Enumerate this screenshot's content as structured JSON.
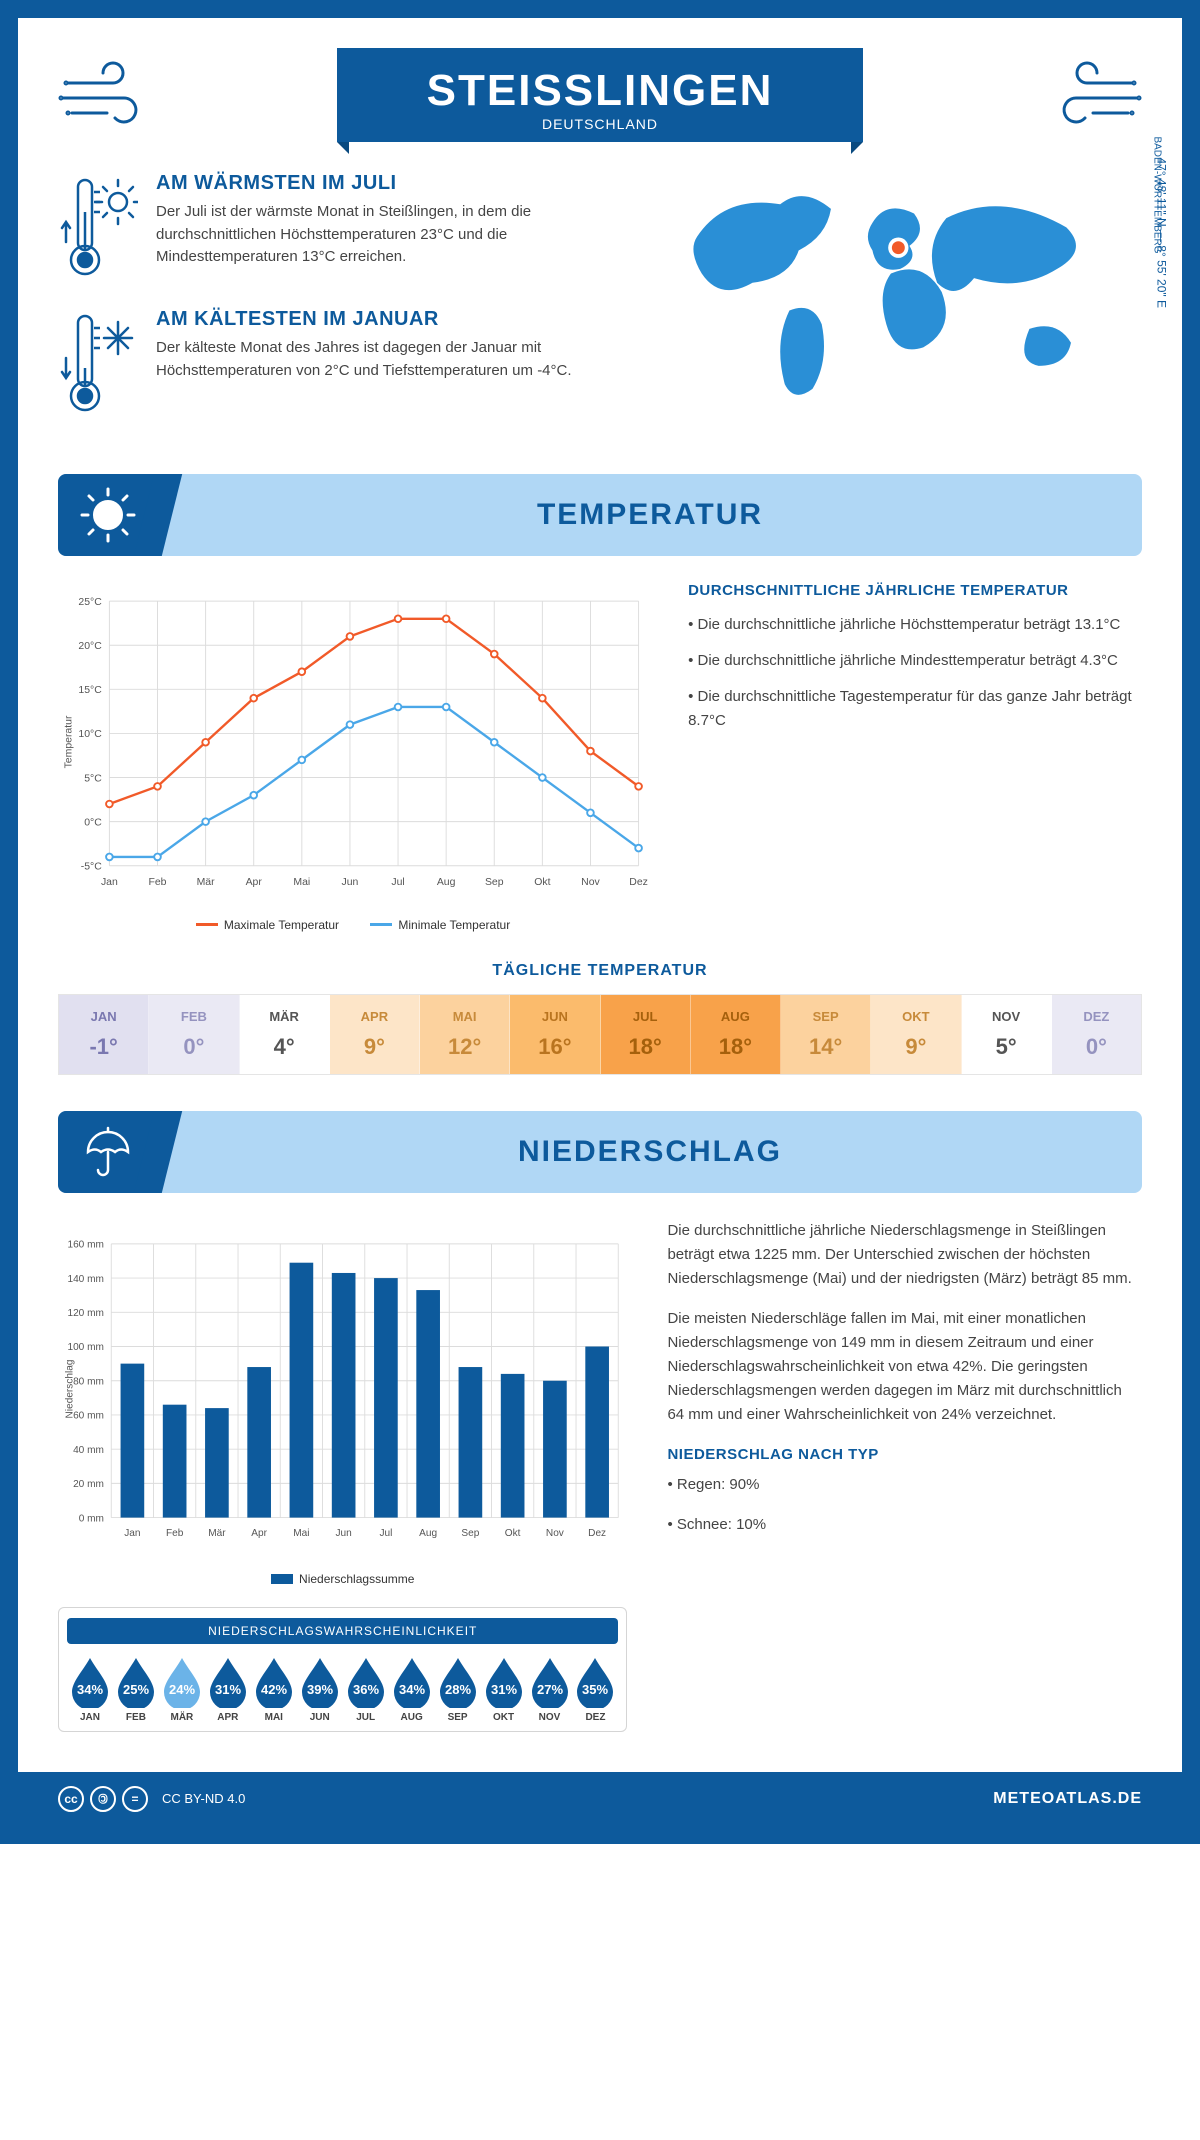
{
  "header": {
    "title": "STEISSLINGEN",
    "subtitle": "DEUTSCHLAND",
    "coords": "47° 48' 11\" N — 8° 55' 20\" E",
    "region": "BADEN-WÜRTTEMBERG"
  },
  "facts": {
    "warm": {
      "title": "AM WÄRMSTEN IM JULI",
      "text": "Der Juli ist der wärmste Monat in Steißlingen, in dem die durchschnittlichen Höchsttemperaturen 23°C und die Mindesttemperaturen 13°C erreichen."
    },
    "cold": {
      "title": "AM KÄLTESTEN IM JANUAR",
      "text": "Der kälteste Monat des Jahres ist dagegen der Januar mit Höchsttemperaturen von 2°C und Tiefsttemperaturen um -4°C."
    }
  },
  "sections": {
    "temp": "TEMPERATUR",
    "precip": "NIEDERSCHLAG"
  },
  "temp_chart": {
    "months": [
      "Jan",
      "Feb",
      "Mär",
      "Apr",
      "Mai",
      "Jun",
      "Jul",
      "Aug",
      "Sep",
      "Okt",
      "Nov",
      "Dez"
    ],
    "max": [
      2,
      4,
      9,
      14,
      17,
      21,
      23,
      23,
      19,
      14,
      8,
      4
    ],
    "min": [
      -4,
      -4,
      0,
      3,
      7,
      11,
      13,
      13,
      9,
      5,
      1,
      -3
    ],
    "max_color": "#f15a29",
    "min_color": "#4aa7e8",
    "grid_color": "#dcdcdc",
    "ylim": [
      -5,
      25
    ],
    "ytick_step": 5,
    "ylabel": "Temperatur",
    "legend_max": "Maximale Temperatur",
    "legend_min": "Minimale Temperatur"
  },
  "temp_text": {
    "heading": "DURCHSCHNITTLICHE JÄHRLICHE TEMPERATUR",
    "p1": "• Die durchschnittliche jährliche Höchsttemperatur beträgt 13.1°C",
    "p2": "• Die durchschnittliche jährliche Mindesttemperatur beträgt 4.3°C",
    "p3": "• Die durchschnittliche Tagestemperatur für das ganze Jahr beträgt 8.7°C"
  },
  "daily": {
    "title": "TÄGLICHE TEMPERATUR",
    "months": [
      "JAN",
      "FEB",
      "MÄR",
      "APR",
      "MAI",
      "JUN",
      "JUL",
      "AUG",
      "SEP",
      "OKT",
      "NOV",
      "DEZ"
    ],
    "values": [
      "-1°",
      "0°",
      "4°",
      "9°",
      "12°",
      "16°",
      "18°",
      "18°",
      "14°",
      "9°",
      "5°",
      "0°"
    ],
    "bg": [
      "#e1e0f0",
      "#eae9f4",
      "#ffffff",
      "#fde5c8",
      "#fcd29e",
      "#fbbb6c",
      "#f8a24a",
      "#f8a24a",
      "#fcd29e",
      "#fde5c8",
      "#ffffff",
      "#eae9f4"
    ],
    "text": [
      "#7a78b0",
      "#9593bf",
      "#555",
      "#c78a3a",
      "#c78a3a",
      "#b9741f",
      "#a5600c",
      "#a5600c",
      "#c78a3a",
      "#c78a3a",
      "#555",
      "#9593bf"
    ]
  },
  "precip_chart": {
    "months": [
      "Jan",
      "Feb",
      "Mär",
      "Apr",
      "Mai",
      "Jun",
      "Jul",
      "Aug",
      "Sep",
      "Okt",
      "Nov",
      "Dez"
    ],
    "values": [
      90,
      66,
      64,
      88,
      149,
      143,
      140,
      133,
      88,
      84,
      80,
      100
    ],
    "bar_color": "#0d5a9c",
    "grid_color": "#dcdcdc",
    "ylim": [
      0,
      160
    ],
    "ytick_step": 20,
    "ylabel": "Niederschlag",
    "legend": "Niederschlagssumme"
  },
  "precip_text": {
    "p1": "Die durchschnittliche jährliche Niederschlagsmenge in Steißlingen beträgt etwa 1225 mm. Der Unterschied zwischen der höchsten Niederschlagsmenge (Mai) und der niedrigsten (März) beträgt 85 mm.",
    "p2": "Die meisten Niederschläge fallen im Mai, mit einer monatlichen Niederschlagsmenge von 149 mm in diesem Zeitraum und einer Niederschlagswahrscheinlichkeit von etwa 42%. Die geringsten Niederschlagsmengen werden dagegen im März mit durchschnittlich 64 mm und einer Wahrscheinlichkeit von 24% verzeichnet.",
    "type_heading": "NIEDERSCHLAG NACH TYP",
    "type1": "• Regen: 90%",
    "type2": "• Schnee: 10%"
  },
  "prob": {
    "title": "NIEDERSCHLAGSWAHRSCHEINLICHKEIT",
    "months": [
      "JAN",
      "FEB",
      "MÄR",
      "APR",
      "MAI",
      "JUN",
      "JUL",
      "AUG",
      "SEP",
      "OKT",
      "NOV",
      "DEZ"
    ],
    "values": [
      "34%",
      "25%",
      "24%",
      "31%",
      "42%",
      "39%",
      "36%",
      "34%",
      "28%",
      "31%",
      "27%",
      "35%"
    ],
    "min_index": 2,
    "drop_color": "#0d5a9c",
    "drop_color_light": "#6bb3e8"
  },
  "footer": {
    "license": "CC BY-ND 4.0",
    "site": "METEOATLAS.DE"
  }
}
